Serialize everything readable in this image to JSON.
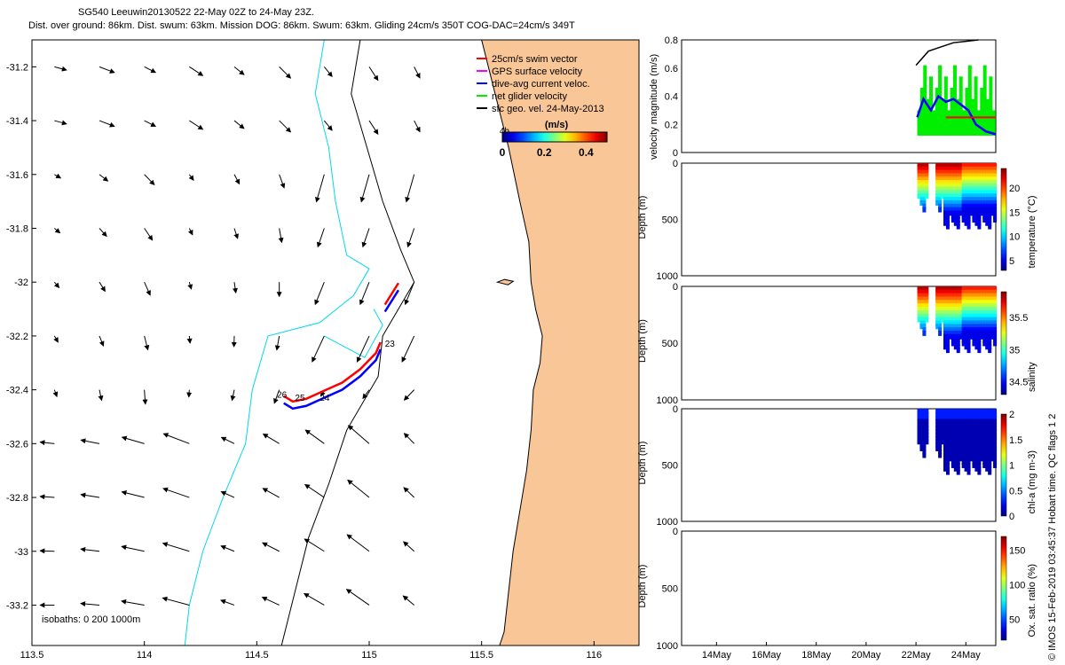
{
  "header": {
    "title": "SG540 Leeuwin20130522 22-May 02Z to 24-May 23Z.",
    "subtitle": "Dist. over ground: 86km. Dist. swum: 63km. Mission DOG: 86km. Swum: 63km. Gliding 24cm/s 350T COG-DAC=24cm/s 349T"
  },
  "credit": "© IMOS 15-Feb-2019 03:45:37 Hobart time. QC flags 1  2",
  "colors": {
    "land": "#f9c697",
    "isobath_shallow": "#00d8e8",
    "isobath_deep": "#000000",
    "swim_vector": "#ff0000",
    "gps_velocity": "#ff00ff",
    "dac_velocity": "#0000ff",
    "net_velocity": "#00ee00",
    "geo_vectors": "#000000"
  },
  "chart_data": [
    {
      "type": "vector-map",
      "xlim": [
        113.5,
        116.2
      ],
      "ylim": [
        -33.35,
        -31.1
      ],
      "x_ticks": [
        "113.5",
        "114",
        "114.5",
        "115",
        "115.5",
        "116"
      ],
      "x_tick_values": [
        113.5,
        114,
        114.5,
        115,
        115.5,
        116
      ],
      "y_ticks": [
        "-31.2",
        "-31.4",
        "-31.6",
        "-31.8",
        "-32",
        "-32.2",
        "-32.4",
        "-32.6",
        "-32.8",
        "-33",
        "-33.2"
      ],
      "y_tick_values": [
        -31.2,
        -31.4,
        -31.6,
        -31.8,
        -32,
        -32.2,
        -32.4,
        -32.6,
        -32.8,
        -33,
        -33.2
      ],
      "legend": {
        "placement": "top-right",
        "entries": [
          {
            "label": "25cm/s swim vector",
            "color": "#ff0000"
          },
          {
            "label": "GPS surface velocity",
            "color": "#ff00ff"
          },
          {
            "label": "dive-avg current veloc.",
            "color": "#0000ff"
          },
          {
            "label": "net glider velocity",
            "color": "#00ee00"
          },
          {
            "label": "sfc geo. vel. 24-May-2013",
            "color": "#000000"
          }
        ]
      },
      "colorbar": {
        "title": "(m/s)",
        "ticks": [
          "0",
          "0.2",
          "0.4"
        ],
        "tick_values": [
          0,
          0.2,
          0.4
        ],
        "range": [
          0,
          0.5
        ],
        "colormap": "jet"
      },
      "isobaths_label": "isobaths: 0   200  1000m",
      "track_labels": [
        {
          "text": "4h",
          "lon": 115.58,
          "lat": -31.45
        },
        {
          "text": "23",
          "lon": 115.07,
          "lat": -32.24
        },
        {
          "text": "24",
          "lon": 114.78,
          "lat": -32.44
        },
        {
          "text": "25",
          "lon": 114.67,
          "lat": -32.44
        },
        {
          "text": "26",
          "lon": 114.59,
          "lat": -32.43
        }
      ]
    },
    {
      "type": "line",
      "xlim": [
        12.6,
        25.2
      ],
      "ylim": [
        0,
        0.8
      ],
      "ylabel": "velocity magnitude (m/s)",
      "y_ticks": [
        "0",
        "0.2",
        "0.4",
        "0.6",
        "0.8"
      ],
      "y_tick_values": [
        0,
        0.2,
        0.4,
        0.6,
        0.8
      ]
    },
    {
      "type": "heatmap",
      "ylabel": "Depth (m)",
      "y_ticks": [
        "0",
        "500",
        "1000"
      ],
      "y_tick_values": [
        0,
        500,
        1000
      ],
      "colorbar": {
        "label": "temperature (°C)",
        "ticks": [
          "5",
          "10",
          "15",
          "20"
        ],
        "tick_values": [
          5,
          10,
          15,
          20
        ],
        "range": [
          3,
          24
        ]
      }
    },
    {
      "type": "heatmap",
      "ylabel": "Depth (m)",
      "y_ticks": [
        "0",
        "500",
        "1000"
      ],
      "y_tick_values": [
        0,
        500,
        1000
      ],
      "colorbar": {
        "label": "salinity",
        "ticks": [
          "34.5",
          "35",
          "35.5"
        ],
        "tick_values": [
          34.5,
          35,
          35.5
        ],
        "range": [
          34.3,
          35.9
        ]
      }
    },
    {
      "type": "heatmap",
      "ylabel": "Depth (m)",
      "y_ticks": [
        "0",
        "500",
        "1000"
      ],
      "y_tick_values": [
        0,
        500,
        1000
      ],
      "colorbar": {
        "label": "chl-a (mg m-3)",
        "ticks": [
          "0",
          "0.5",
          "1",
          "1.5",
          "2"
        ],
        "tick_values": [
          0,
          0.5,
          1,
          1.5,
          2
        ],
        "range": [
          0,
          2
        ]
      }
    },
    {
      "type": "heatmap",
      "ylabel": "Depth (m)",
      "y_ticks": [
        "0",
        "500",
        "1000"
      ],
      "y_tick_values": [
        0,
        500,
        1000
      ],
      "x_ticks": [
        "14May",
        "16May",
        "18May",
        "20May",
        "22May",
        "24May"
      ],
      "x_tick_values": [
        14,
        16,
        18,
        20,
        22,
        24
      ],
      "colorbar": {
        "label": "Ox. sat. ratio (%)",
        "ticks": [
          "50",
          "100",
          "150"
        ],
        "tick_values": [
          50,
          100,
          150
        ],
        "range": [
          20,
          170
        ]
      }
    }
  ]
}
